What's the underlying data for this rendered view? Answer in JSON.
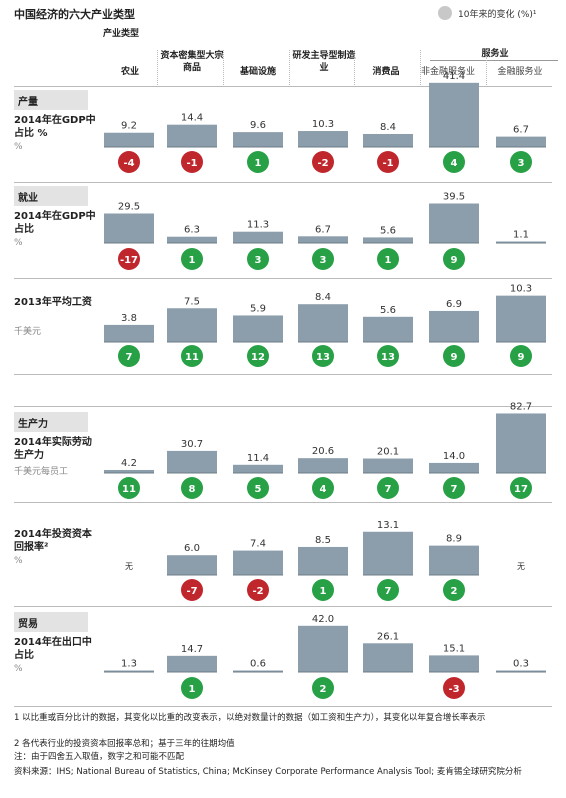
{
  "title": "中国经济的六大产业类型",
  "legend": {
    "label": "10年来的变化 (%)¹",
    "color": "#c8c8c8"
  },
  "header": {
    "top_label": "产业类型",
    "services_group": "服务业",
    "columns": [
      "农业",
      "资本密集型大宗商品",
      "基础设施",
      "研发主导型制造业",
      "消费品",
      "非金融服务业",
      "金融服务业"
    ]
  },
  "colors": {
    "bar": "#8c9eab",
    "bar_edge": "#6c7c88",
    "green": "#27a046",
    "red": "#c0272d"
  },
  "sections": [
    {
      "tag": "产量",
      "label": "2014年在GDP中占比 %",
      "unit": "%"
    },
    {
      "tag": "就业",
      "label": "2014年在GDP中占比",
      "unit": "%"
    },
    {
      "tag": "",
      "label": "2013年平均工资",
      "unit": "千美元"
    },
    {
      "tag": "生产力",
      "label": "2014年实际劳动生产力",
      "unit": "千美元每员工"
    },
    {
      "tag": "",
      "label": "2014年投资资本回报率²",
      "unit": "%"
    },
    {
      "tag": "贸易",
      "label": "2014年在出口中占比",
      "unit": "%"
    }
  ],
  "chart_data": [
    {
      "type": "bar",
      "metric": "2014年在GDP中占比 %",
      "categories": [
        "农业",
        "资本密集型大宗商品",
        "基础设施",
        "研发主导型制造业",
        "消费品",
        "非金融服务业",
        "金融服务业"
      ],
      "values": [
        9.2,
        14.4,
        9.6,
        10.3,
        8.4,
        41.4,
        6.7
      ],
      "labels": [
        "9.2",
        "14.4",
        "9.6",
        "10.3",
        "8.4",
        "41.4",
        "6.7"
      ],
      "change": [
        -4,
        -1,
        1,
        -2,
        -1,
        4,
        3
      ]
    },
    {
      "type": "bar",
      "metric": "就业 2014年在GDP中占比",
      "categories": [
        "农业",
        "资本密集型大宗商品",
        "基础设施",
        "研发主导型制造业",
        "消费品",
        "非金融服务业",
        "金融服务业"
      ],
      "values": [
        29.5,
        6.3,
        11.3,
        6.7,
        5.6,
        39.5,
        1.1
      ],
      "labels": [
        "29.5",
        "6.3",
        "11.3",
        "6.7",
        "5.6",
        "39.5",
        "1.1"
      ],
      "change": [
        -17,
        1,
        3,
        3,
        1,
        9,
        null
      ]
    },
    {
      "type": "bar",
      "metric": "2013年平均工资",
      "categories": [
        "农业",
        "资本密集型大宗商品",
        "基础设施",
        "研发主导型制造业",
        "消费品",
        "非金融服务业",
        "金融服务业"
      ],
      "values": [
        3.8,
        7.5,
        5.9,
        8.4,
        5.6,
        6.9,
        10.3
      ],
      "labels": [
        "3.8",
        "7.5",
        "5.9",
        "8.4",
        "5.6",
        "6.9",
        "10.3"
      ],
      "change": [
        7,
        11,
        12,
        13,
        13,
        9,
        9
      ]
    },
    {
      "type": "bar",
      "metric": "2014年实际劳动生产力",
      "categories": [
        "农业",
        "资本密集型大宗商品",
        "基础设施",
        "研发主导型制造业",
        "消费品",
        "非金融服务业",
        "金融服务业"
      ],
      "values": [
        4.2,
        30.7,
        11.4,
        20.6,
        20.1,
        14.0,
        82.7
      ],
      "labels": [
        "4.2",
        "30.7",
        "11.4",
        "20.6",
        "20.1",
        "14.0",
        "82.7"
      ],
      "change": [
        11,
        8,
        5,
        4,
        7,
        7,
        17
      ]
    },
    {
      "type": "bar",
      "metric": "2014年投资资本回报率",
      "categories": [
        "农业",
        "资本密集型大宗商品",
        "基础设施",
        "研发主导型制造业",
        "消费品",
        "非金融服务业",
        "金融服务业"
      ],
      "values": [
        null,
        6.0,
        7.4,
        8.5,
        13.1,
        8.9,
        null
      ],
      "labels": [
        "无",
        "6.0",
        "7.4",
        "8.5",
        "13.1",
        "8.9",
        "无"
      ],
      "change": [
        null,
        -7,
        -2,
        1,
        7,
        2,
        null
      ]
    },
    {
      "type": "bar",
      "metric": "2014年在出口中占比",
      "categories": [
        "农业",
        "资本密集型大宗商品",
        "基础设施",
        "研发主导型制造业",
        "消费品",
        "非金融服务业",
        "金融服务业"
      ],
      "values": [
        1.3,
        14.7,
        0.6,
        42.0,
        26.1,
        15.1,
        0.3
      ],
      "labels": [
        "1.3",
        "14.7",
        "0.6",
        "42.0",
        "26.1",
        "15.1",
        "0.3"
      ],
      "change": [
        null,
        1,
        null,
        2,
        null,
        -3,
        null
      ]
    }
  ],
  "footnotes": {
    "n1": "1 以比重或百分比计的数据，其变化以比重的改变表示，以绝对数量计的数据（如工资和生产力），其变化以年复合增长率表示",
    "n2": "2 各代表行业的投资资本回报率总和；基于三年的往期均值",
    "n3": "注：由于四舍五入取值，数字之和可能不匹配",
    "source": "资料来源：IHS; National Bureau of Statistics, China; McKinsey Corporate Performance Analysis Tool; 麦肯锡全球研究院分析"
  }
}
